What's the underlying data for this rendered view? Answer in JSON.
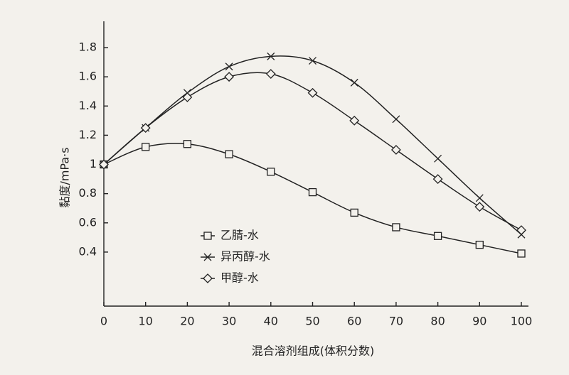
{
  "chart_data": {
    "type": "line",
    "x_label": "混合溶剂组成(体积分数)",
    "y_label": "黏度/mPa·s",
    "x": [
      0,
      10,
      20,
      30,
      40,
      50,
      60,
      70,
      80,
      90,
      100
    ],
    "series": [
      {
        "name": "乙腈-水",
        "color": "#222222",
        "marker": "square",
        "values": [
          1.0,
          1.12,
          1.14,
          1.07,
          0.95,
          0.81,
          0.67,
          0.57,
          0.51,
          0.45,
          0.39
        ]
      },
      {
        "name": "异丙醇-水",
        "color": "#222222",
        "marker": "x",
        "values": [
          1.0,
          1.25,
          1.49,
          1.67,
          1.74,
          1.71,
          1.56,
          1.31,
          1.04,
          0.77,
          0.52
        ]
      },
      {
        "name": "甲醇-水",
        "color": "#222222",
        "marker": "diamond",
        "values": [
          1.0,
          1.25,
          1.46,
          1.6,
          1.62,
          1.49,
          1.3,
          1.1,
          0.9,
          0.71,
          0.55
        ]
      }
    ],
    "xlim": [
      0,
      100
    ],
    "xticks": [
      0,
      10,
      20,
      30,
      40,
      50,
      60,
      70,
      80,
      90,
      100
    ],
    "ylim": [
      0.03,
      1.98
    ],
    "yticks": [
      0.4,
      0.6,
      0.8,
      1,
      1.2,
      1.4,
      1.6,
      1.8
    ],
    "legend": "lower-left"
  }
}
